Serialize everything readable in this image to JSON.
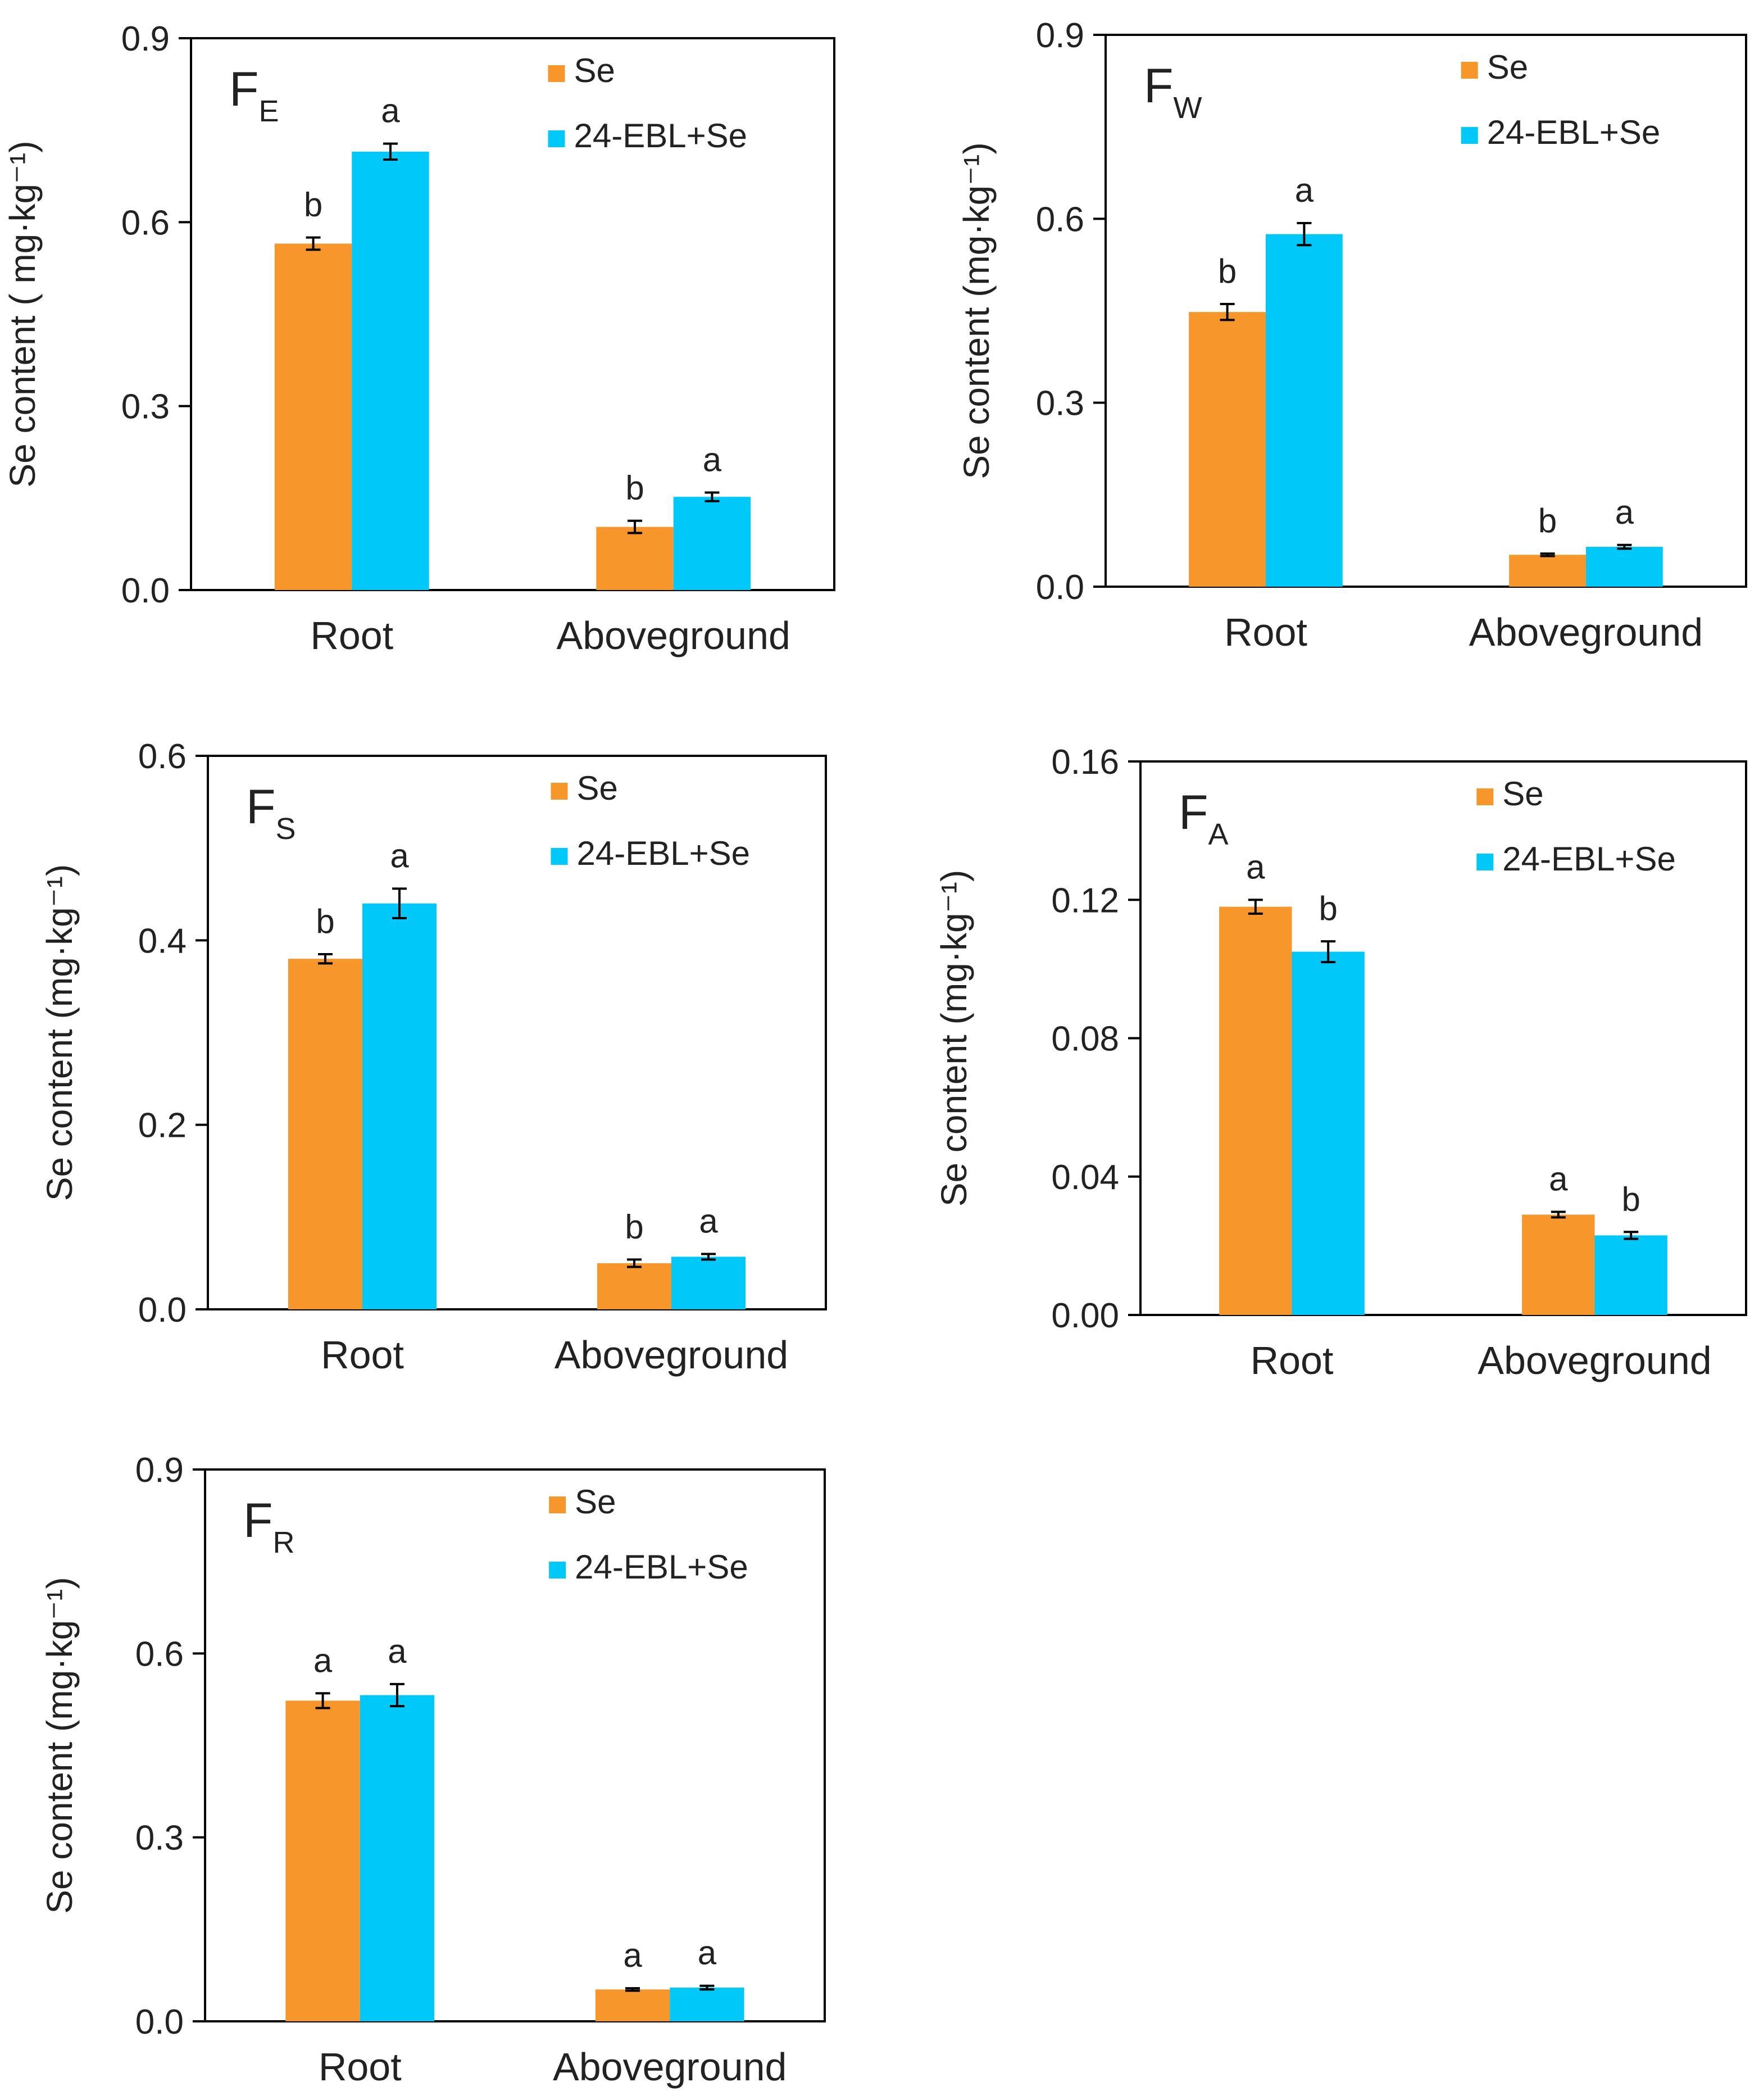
{
  "figure": {
    "series_names": [
      "Se",
      "24-EBL+Se"
    ],
    "colors": {
      "Se": "#F7962B",
      "24-EBL+Se": "#00C8F8"
    },
    "categories": [
      "Root",
      "Aboveground"
    ]
  },
  "chart_data": [
    {
      "type": "bar",
      "panel": "FE",
      "panel_main": "F",
      "panel_sub": "E",
      "ylabel": "Se content ( mg·kg⁻¹)",
      "ylim": [
        0,
        0.9
      ],
      "yticks": [
        "0.0",
        "0.3",
        "0.6",
        "0.9"
      ],
      "categories": [
        "Root",
        "Aboveground"
      ],
      "series": [
        {
          "name": "Se",
          "values": [
            0.565,
            0.103
          ],
          "errors": [
            0.01,
            0.01
          ],
          "letters": [
            "b",
            "b"
          ]
        },
        {
          "name": "24-EBL+Se",
          "values": [
            0.715,
            0.152
          ],
          "errors": [
            0.013,
            0.007
          ],
          "letters": [
            "a",
            "a"
          ]
        }
      ]
    },
    {
      "type": "bar",
      "panel": "FW",
      "panel_main": "F",
      "panel_sub": "W",
      "ylabel": "Se content (mg·kg⁻¹)",
      "ylim": [
        0,
        0.9
      ],
      "yticks": [
        "0.0",
        "0.3",
        "0.6",
        "0.9"
      ],
      "categories": [
        "Root",
        "Aboveground"
      ],
      "series": [
        {
          "name": "Se",
          "values": [
            0.448,
            0.052
          ],
          "errors": [
            0.013,
            0.002
          ],
          "letters": [
            "b",
            "b"
          ]
        },
        {
          "name": "24-EBL+Se",
          "values": [
            0.575,
            0.065
          ],
          "errors": [
            0.018,
            0.003
          ],
          "letters": [
            "a",
            "a"
          ]
        }
      ]
    },
    {
      "type": "bar",
      "panel": "FS",
      "panel_main": "F",
      "panel_sub": "S",
      "ylabel": "Se content (mg·kg⁻¹)",
      "ylim": [
        0,
        0.6
      ],
      "yticks": [
        "0.0",
        "0.2",
        "0.4",
        "0.6"
      ],
      "categories": [
        "Root",
        "Aboveground"
      ],
      "series": [
        {
          "name": "Se",
          "values": [
            0.38,
            0.05
          ],
          "errors": [
            0.005,
            0.004
          ],
          "letters": [
            "b",
            "b"
          ]
        },
        {
          "name": "24-EBL+Se",
          "values": [
            0.44,
            0.057
          ],
          "errors": [
            0.016,
            0.003
          ],
          "letters": [
            "a",
            "a"
          ]
        }
      ]
    },
    {
      "type": "bar",
      "panel": "FA",
      "panel_main": "F",
      "panel_sub": "A",
      "ylabel": "Se content (mg·kg⁻¹)",
      "ylim": [
        0,
        0.16
      ],
      "yticks": [
        "0.00",
        "0.04",
        "0.08",
        "0.12",
        "0.16"
      ],
      "categories": [
        "Root",
        "Aboveground"
      ],
      "series": [
        {
          "name": "Se",
          "values": [
            0.118,
            0.029
          ],
          "errors": [
            0.002,
            0.0008
          ],
          "letters": [
            "a",
            "a"
          ]
        },
        {
          "name": "24-EBL+Se",
          "values": [
            0.105,
            0.023
          ],
          "errors": [
            0.003,
            0.001
          ],
          "letters": [
            "b",
            "b"
          ]
        }
      ]
    },
    {
      "type": "bar",
      "panel": "FR",
      "panel_main": "F",
      "panel_sub": "R",
      "ylabel": "Se content (mg·kg⁻¹)",
      "ylim": [
        0,
        0.9
      ],
      "yticks": [
        "0.0",
        "0.3",
        "0.6",
        "0.9"
      ],
      "categories": [
        "Root",
        "Aboveground"
      ],
      "series": [
        {
          "name": "Se",
          "values": [
            0.523,
            0.052
          ],
          "errors": [
            0.012,
            0.002
          ],
          "letters": [
            "a",
            "a"
          ]
        },
        {
          "name": "24-EBL+Se",
          "values": [
            0.532,
            0.055
          ],
          "errors": [
            0.018,
            0.003
          ],
          "letters": [
            "a",
            "a"
          ]
        }
      ]
    }
  ]
}
